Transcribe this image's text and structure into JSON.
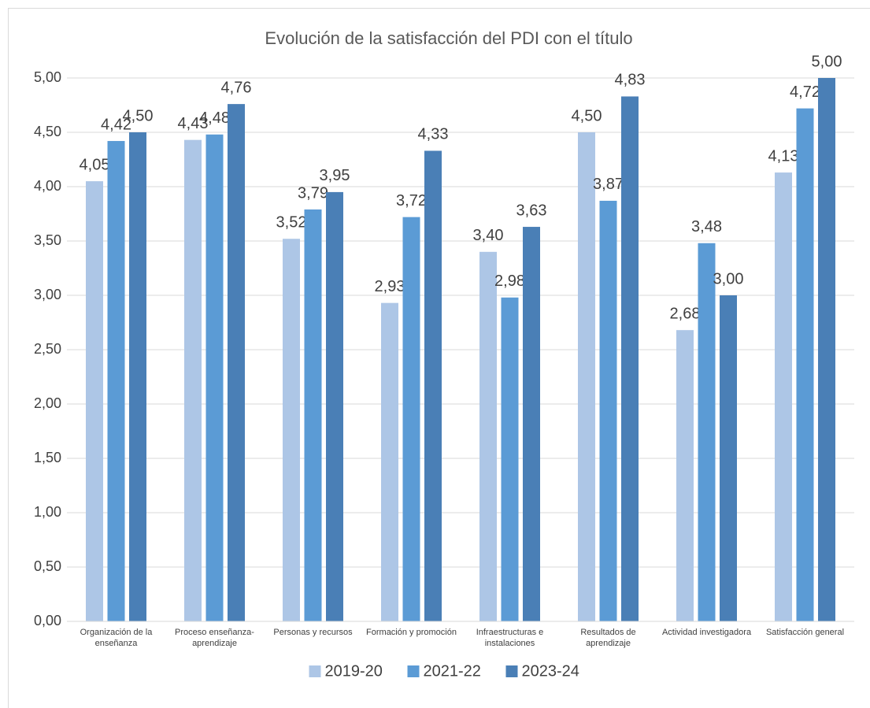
{
  "chart_data": {
    "type": "bar",
    "title": "Evolución de la satisfacción del PDI con el título",
    "categories": [
      "Organización de la enseñanza",
      "Proceso enseñanza-aprendizaje",
      "Personas y recursos",
      "Formación y promoción",
      "Infraestructuras e instalaciones",
      "Resultados de aprendizaje",
      "Actividad investigadora",
      "Satisfacción general"
    ],
    "series": [
      {
        "name": "2019-20",
        "color": "#adc6e6",
        "values": [
          4.05,
          4.43,
          3.52,
          2.93,
          3.4,
          4.5,
          2.68,
          4.13
        ],
        "value_labels": [
          "4,05",
          "4,43",
          "3,52",
          "2,93",
          "3,40",
          "4,50",
          "2,68",
          "4,13"
        ]
      },
      {
        "name": "2021-22",
        "color": "#5b9bd5",
        "values": [
          4.42,
          4.48,
          3.79,
          3.72,
          2.98,
          3.87,
          3.48,
          4.72
        ],
        "value_labels": [
          "4,42",
          "4,48",
          "3,79",
          "3,72",
          "2,98",
          "3,87",
          "3,48",
          "4,72"
        ]
      },
      {
        "name": "2023-24",
        "color": "#4a7fb6",
        "values": [
          4.5,
          4.76,
          3.95,
          4.33,
          3.63,
          4.83,
          3.0,
          5.0
        ],
        "value_labels": [
          "4,50",
          "4,76",
          "3,95",
          "4,33",
          "3,63",
          "4,83",
          "3,00",
          "5,00"
        ]
      }
    ],
    "ylim": [
      0,
      5
    ],
    "yticks": [
      {
        "value": 0,
        "label": "0,00"
      },
      {
        "value": 0.5,
        "label": "0,50"
      },
      {
        "value": 1,
        "label": "1,00"
      },
      {
        "value": 1.5,
        "label": "1,50"
      },
      {
        "value": 2,
        "label": "2,00"
      },
      {
        "value": 2.5,
        "label": "2,50"
      },
      {
        "value": 3,
        "label": "3,00"
      },
      {
        "value": 3.5,
        "label": "3,50"
      },
      {
        "value": 4,
        "label": "4,00"
      },
      {
        "value": 4.5,
        "label": "4,50"
      },
      {
        "value": 5,
        "label": "5,00"
      }
    ],
    "grid": true,
    "legend": "bottom"
  }
}
